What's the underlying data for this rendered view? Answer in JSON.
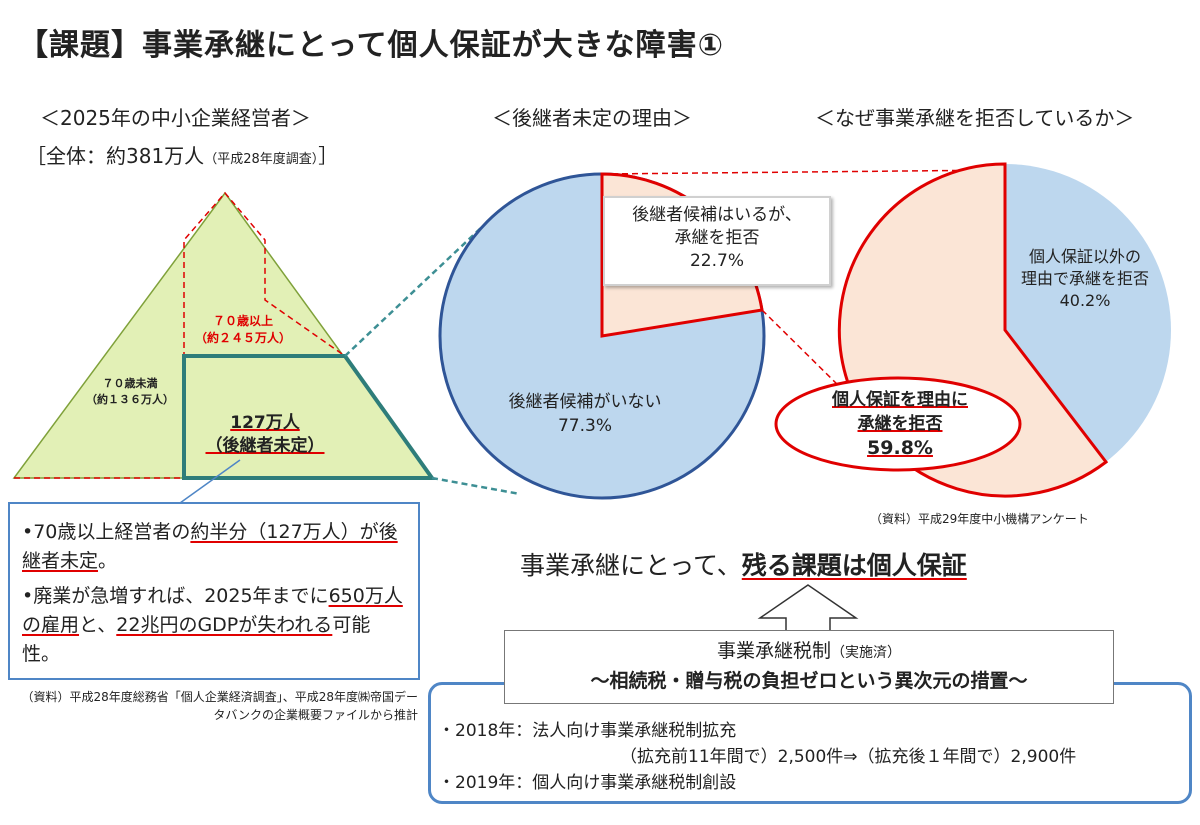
{
  "title": "【課題】事業承継にとって個人保証が大きな障害①",
  "pyramid": {
    "heading": "＜2025年の中小企業経営者＞",
    "total_prefix": "［全体：約381万人",
    "total_note": "（平成28年度調査）",
    "total_suffix": "］",
    "over70_label": "７０歳以上",
    "over70_count": "（約２４５万人）",
    "under70_label": "７０歳未満",
    "under70_count": "（約１３６万人）",
    "undecided_count": "127万人",
    "undecided_label": "（後継者未定）"
  },
  "notes": {
    "bullet1_a": "•70歳以上経営者の",
    "bullet1_b": "約半分（127万人）が後継者未定",
    "bullet1_c": "。",
    "bullet2_a": "•廃業が急増すれば、2025年までに",
    "bullet2_b": "650万人の雇用",
    "bullet2_c": "と、",
    "bullet2_d": "22兆円のGDPが失われる",
    "bullet2_e": "可能性。",
    "source": "（資料）平成28年度総務省「個人企業経済調査」、平成28年度㈱帝国データバンクの企業概要ファイルから推計"
  },
  "pie1": {
    "heading": "＜後継者未定の理由＞",
    "slice_small_line1": "後継者候補はいるが、",
    "slice_small_line2": "承継を拒否",
    "slice_small_pct": "22.7%",
    "slice_big_line1": "後継者候補がいない",
    "slice_big_pct": "77.3%"
  },
  "pie2": {
    "heading": "＜なぜ事業承継を拒否しているか＞",
    "slice_small_line1": "個人保証以外の",
    "slice_small_line2": "理由で承継を拒否",
    "slice_small_pct": "40.2%",
    "slice_big_line1": "個人保証を理由に",
    "slice_big_line2": "承継を拒否",
    "slice_big_pct": "59.8%",
    "source": "（資料）平成29年度中小機構アンケート"
  },
  "chart_data": [
    {
      "type": "pie",
      "categories": [
        "後継者候補がいない",
        "後継者候補はいるが、承継を拒否"
      ],
      "values": [
        77.3,
        22.7
      ],
      "title": "＜後継者未定の理由＞"
    },
    {
      "type": "pie",
      "categories": [
        "個人保証以外の理由で承継を拒否",
        "個人保証を理由に承継を拒否"
      ],
      "values": [
        40.2,
        59.8
      ],
      "title": "＜なぜ事業承継を拒否しているか＞"
    }
  ],
  "conclusion": {
    "prefix": "事業承継にとって、",
    "bold": "残る課題は個人保証"
  },
  "tax": {
    "title": "事業承継税制",
    "title_note": "（実施済）",
    "subtitle": "～相続税・贈与税の負担ゼロという異次元の措置～",
    "line1": "・2018年：法人向け事業承継税制拡充",
    "line1b": "（拡充前11年間で）2,500件⇒（拡充後１年間で）2,900件",
    "line2": "・2019年：個人向け事業承継税制創設"
  },
  "colors": {
    "red": "#e00000",
    "blue": "#4f86c6",
    "pie_blue": "#bdd7ee",
    "pie_edge": "#2f5597",
    "peach": "#fbe5d6",
    "pyramid_green": "#e2f0b6",
    "teal": "#3d8f94"
  }
}
